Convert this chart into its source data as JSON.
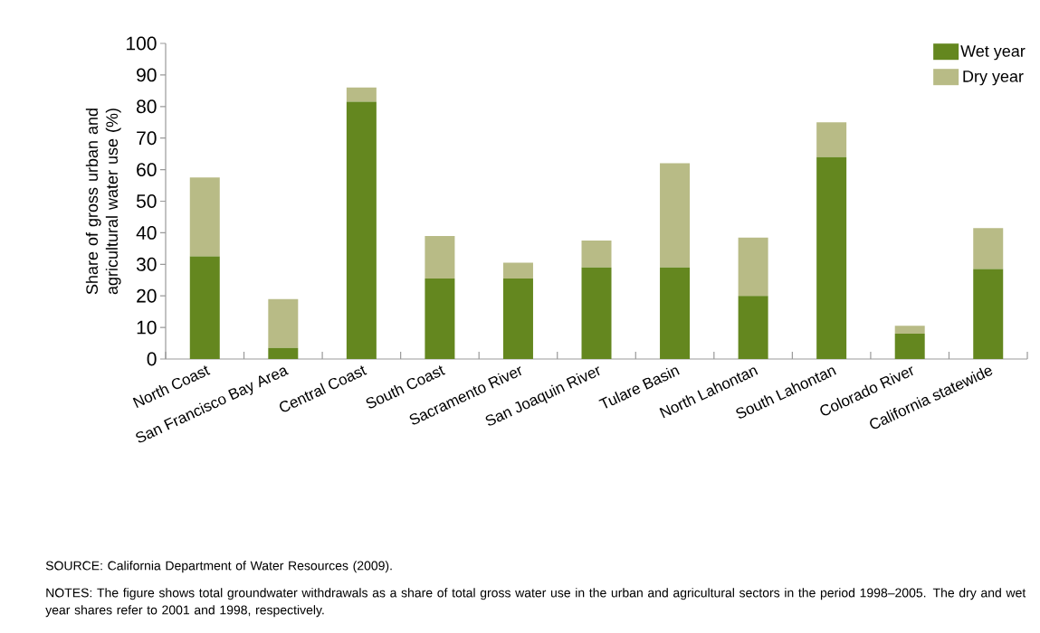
{
  "chart_data": {
    "type": "bar",
    "stacked": true,
    "ylabel": "Share of gross urban and agricultural water use (%)",
    "categories": [
      "North Coast",
      "San Francisco Bay Area",
      "Central Coast",
      "South Coast",
      "Sacramento River",
      "San Joaquin River",
      "Tulare Basin",
      "North Lahontan",
      "South Lahontan",
      "Colorado River",
      "California statewide"
    ],
    "series": [
      {
        "name": "Wet year",
        "color": "#64871f",
        "values": [
          32.5,
          3.5,
          81.5,
          25.5,
          25.5,
          29,
          29,
          20,
          64,
          8,
          28.5
        ]
      },
      {
        "name": "Dry year",
        "color": "#b8bb86",
        "values": [
          25,
          15.5,
          4.5,
          13.5,
          5,
          8.5,
          33,
          18.5,
          11,
          2.5,
          13
        ]
      }
    ],
    "ylim": [
      0,
      100
    ],
    "yticks": [
      0,
      10,
      20,
      30,
      40,
      50,
      60,
      70,
      80,
      90,
      100
    ],
    "grid": false,
    "legend": "top right",
    "annotations": [
      "SOURCE: California Department of Water Resources (2009).",
      "NOTES: The figure shows total groundwater withdrawals as a share of total gross water use in the urban and agricultural sectors in the period 1998–2005. The dry and wet year shares refer to 2001 and 1998, respectively."
    ]
  }
}
